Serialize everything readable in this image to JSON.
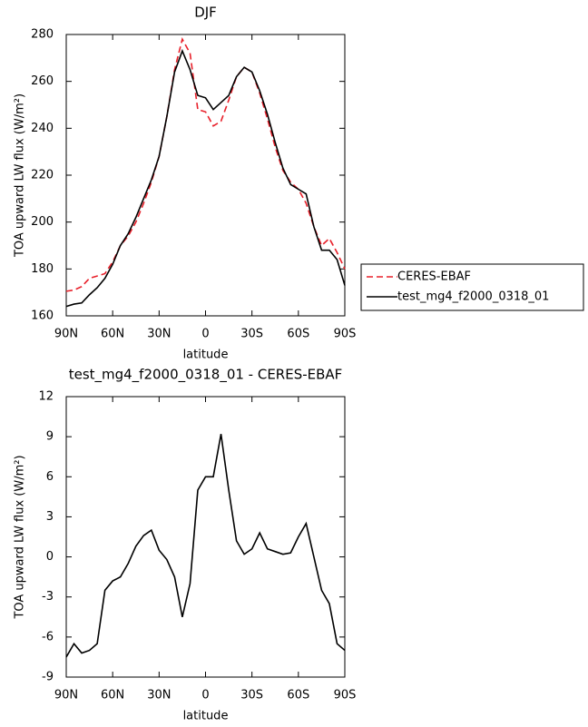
{
  "chart_data": [
    {
      "type": "line",
      "title": "DJF",
      "xlabel": "latitude",
      "ylabel": "TOA upward LW flux (W/m²)",
      "x": [
        90,
        85,
        80,
        75,
        70,
        65,
        60,
        55,
        50,
        45,
        40,
        35,
        30,
        25,
        20,
        15,
        10,
        5,
        0,
        -5,
        -10,
        -15,
        -20,
        -25,
        -30,
        -35,
        -40,
        -45,
        -50,
        -55,
        -60,
        -65,
        -70,
        -75,
        -80,
        -85,
        -90
      ],
      "series": [
        {
          "name": "CERES-EBAF",
          "color": "#e8202a",
          "line_style": "dashed",
          "values": [
            170.5,
            171,
            172.5,
            176,
            177,
            178,
            183,
            190,
            194,
            200,
            208,
            217,
            228,
            245,
            265,
            278,
            272,
            248,
            247,
            241,
            243,
            252,
            262,
            266,
            264,
            255,
            244,
            232,
            222,
            217,
            214,
            208,
            198,
            190,
            193,
            187,
            180
          ]
        },
        {
          "name": "test_mg4_f2000_0318_01",
          "color": "#000000",
          "line_style": "solid",
          "values": [
            164,
            165,
            165.5,
            169,
            172,
            176,
            182,
            190,
            195,
            202,
            210,
            218,
            228,
            245,
            264,
            273,
            265,
            254,
            253,
            248,
            251,
            254,
            262,
            266,
            264,
            256,
            246,
            234,
            223,
            216,
            214,
            212,
            198,
            188,
            188,
            184,
            173
          ]
        }
      ],
      "xlim": [
        90,
        -90
      ],
      "xticks": [
        {
          "value": 90,
          "label": "90N"
        },
        {
          "value": 60,
          "label": "60N"
        },
        {
          "value": 30,
          "label": "30N"
        },
        0,
        {
          "value": -30,
          "label": "30S"
        },
        {
          "value": -60,
          "label": "60S"
        },
        {
          "value": -90,
          "label": "90S"
        }
      ],
      "ylim": [
        160,
        280
      ],
      "yticks": [
        160,
        180,
        200,
        220,
        240,
        260,
        280
      ],
      "legend": "outside right"
    },
    {
      "type": "line",
      "title": "test_mg4_f2000_0318_01 - CERES-EBAF",
      "xlabel": "latitude",
      "ylabel": "TOA upward LW flux (W/m²)",
      "x": [
        90,
        85,
        80,
        75,
        70,
        65,
        60,
        55,
        50,
        45,
        40,
        35,
        30,
        25,
        20,
        15,
        10,
        5,
        0,
        -5,
        -10,
        -15,
        -20,
        -25,
        -30,
        -35,
        -40,
        -45,
        -50,
        -55,
        -60,
        -65,
        -70,
        -75,
        -80,
        -85,
        -90
      ],
      "series": [
        {
          "color": "#000000",
          "line_style": "solid",
          "values": [
            -7.5,
            -6.5,
            -7.2,
            -7,
            -6.5,
            -2.5,
            -1.8,
            -1.5,
            -0.5,
            0.8,
            1.6,
            2,
            0.5,
            -0.2,
            -1.5,
            -4.5,
            -2,
            5,
            6,
            6,
            9.2,
            5,
            1.2,
            0.2,
            0.6,
            1.8,
            0.6,
            0.4,
            0.2,
            0.3,
            1.5,
            2.5,
            0,
            -2.5,
            -3.5,
            -6.5,
            -7
          ]
        }
      ],
      "xlim": [
        90,
        -90
      ],
      "xticks": [
        {
          "value": 90,
          "label": "90N"
        },
        {
          "value": 60,
          "label": "60N"
        },
        {
          "value": 30,
          "label": "30N"
        },
        0,
        {
          "value": -30,
          "label": "30S"
        },
        {
          "value": -60,
          "label": "60S"
        },
        {
          "value": -90,
          "label": "90S"
        }
      ],
      "ylim": [
        -9,
        12
      ],
      "yticks": [
        -9,
        -6,
        -3,
        0,
        3,
        6,
        9,
        12
      ]
    }
  ]
}
